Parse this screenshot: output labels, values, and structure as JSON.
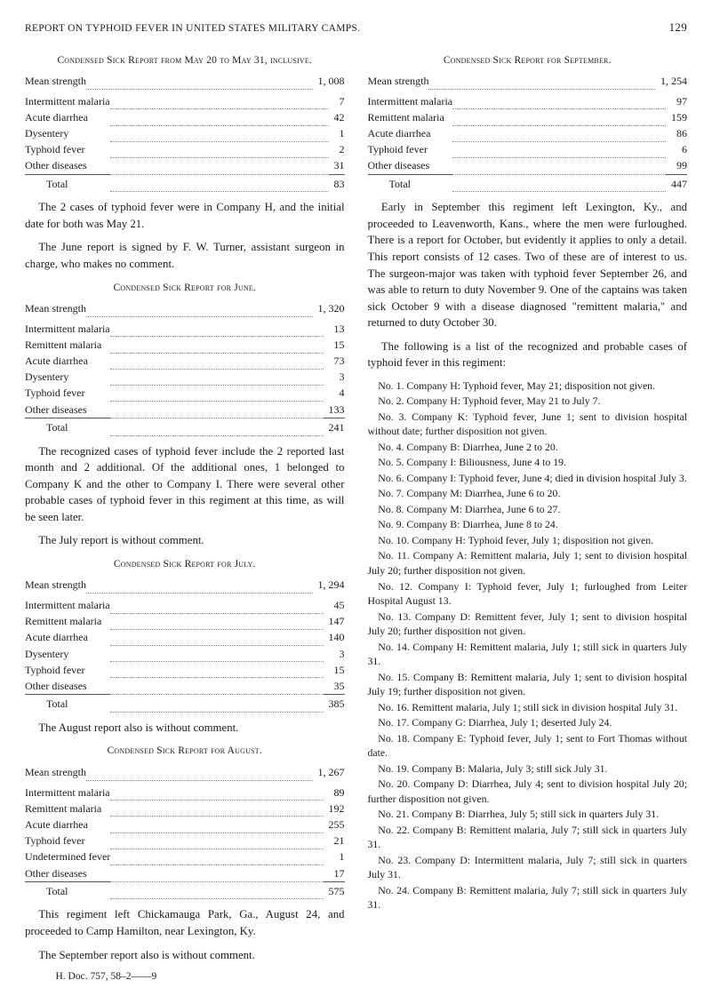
{
  "header": {
    "title": "REPORT ON TYPHOID FEVER IN UNITED STATES MILITARY CAMPS.",
    "page": "129"
  },
  "left": {
    "may": {
      "heading": "Condensed Sick Report from May 20 to May 31, inclusive.",
      "mean_label": "Mean strength",
      "mean_value": "1, 008",
      "rows": [
        {
          "label": "Intermittent malaria",
          "value": "7"
        },
        {
          "label": "Acute diarrhea",
          "value": "42"
        },
        {
          "label": "Dysentery",
          "value": "1"
        },
        {
          "label": "Typhoid fever",
          "value": "2"
        },
        {
          "label": "Other diseases",
          "value": "31"
        }
      ],
      "total_label": "Total",
      "total_value": "83"
    },
    "para_may_after": "The 2 cases of typhoid fever were in Company H, and the initial date for both was May 21.",
    "para_may_after2": "The June report is signed by F. W. Turner, assistant surgeon in charge, who makes no comment.",
    "june": {
      "heading": "Condensed Sick Report for June.",
      "mean_label": "Mean strength",
      "mean_value": "1, 320",
      "rows": [
        {
          "label": "Intermittent malaria",
          "value": "13"
        },
        {
          "label": "Remittent malaria",
          "value": "15"
        },
        {
          "label": "Acute diarrhea",
          "value": "73"
        },
        {
          "label": "Dysentery",
          "value": "3"
        },
        {
          "label": "Typhoid fever",
          "value": "4"
        },
        {
          "label": "Other diseases",
          "value": "133"
        }
      ],
      "total_label": "Total",
      "total_value": "241"
    },
    "para_june_after": "The recognized cases of typhoid fever include the 2 reported last month and 2 additional. Of the additional ones, 1 belonged to Company K and the other to Company I. There were several other probable cases of typhoid fever in this regiment at this time, as will be seen later.",
    "para_june_after2": "The July report is without comment.",
    "july": {
      "heading": "Condensed Sick Report for July.",
      "mean_label": "Mean strength",
      "mean_value": "1, 294",
      "rows": [
        {
          "label": "Intermittent malaria",
          "value": "45"
        },
        {
          "label": "Remittent malaria",
          "value": "147"
        },
        {
          "label": "Acute diarrhea",
          "value": "140"
        },
        {
          "label": "Dysentery",
          "value": "3"
        },
        {
          "label": "Typhoid fever",
          "value": "15"
        },
        {
          "label": "Other diseases",
          "value": "35"
        }
      ],
      "total_label": "Total",
      "total_value": "385"
    },
    "para_july_after": "The August report also is without comment.",
    "august": {
      "heading": "Condensed Sick Report for August.",
      "mean_label": "Mean strength",
      "mean_value": "1, 267",
      "rows": [
        {
          "label": "Intermittent malaria",
          "value": "89"
        },
        {
          "label": "Remittent malaria",
          "value": "192"
        },
        {
          "label": "Acute diarrhea",
          "value": "255"
        },
        {
          "label": "Typhoid fever",
          "value": "21"
        },
        {
          "label": "Undetermined fever",
          "value": "1"
        },
        {
          "label": "Other diseases",
          "value": "17"
        }
      ],
      "total_label": "Total",
      "total_value": "575"
    },
    "para_aug_after": "This regiment left Chickamauga Park, Ga., August 24, and proceeded to Camp Hamilton, near Lexington, Ky.",
    "para_aug_after2": "The September report also is without comment.",
    "footer": "H. Doc. 757, 58–2——9"
  },
  "right": {
    "sept": {
      "heading": "Condensed Sick Report for September.",
      "mean_label": "Mean strength",
      "mean_value": "1, 254",
      "rows": [
        {
          "label": "Intermittent malaria",
          "value": "97"
        },
        {
          "label": "Remittent malaria",
          "value": "159"
        },
        {
          "label": "Acute diarrhea",
          "value": "86"
        },
        {
          "label": "Typhoid fever",
          "value": "6"
        },
        {
          "label": "Other diseases",
          "value": "99"
        }
      ],
      "total_label": "Total",
      "total_value": "447"
    },
    "para_sept_after": "Early in September this regiment left Lexington, Ky., and proceeded to Leavenworth, Kans., where the men were furloughed. There is a report for October, but evidently it applies to only a detail. This report consists of 12 cases. Two of these are of interest to us. The surgeon-major was taken with typhoid fever September 26, and was able to return to duty November 9. One of the captains was taken sick October 9 with a disease diagnosed \"remittent malaria,\" and returned to duty October 30.",
    "para_list_intro": "The following is a list of the recognized and probable cases of typhoid fever in this regiment:",
    "cases": [
      "No. 1. Company H: Typhoid fever, May 21; disposition not given.",
      "No. 2. Company H: Typhoid fever, May 21 to July 7.",
      "No. 3. Company K: Typhoid fever, June 1; sent to division hospital without date; further disposition not given.",
      "No. 4. Company B: Diarrhea, June 2 to 20.",
      "No. 5. Company I: Biliousness, June 4 to 19.",
      "No. 6. Company I: Typhoid fever, June 4; died in division hospital July 3.",
      "No. 7. Company M: Diarrhea, June 6 to 20.",
      "No. 8. Company M: Diarrhea, June 6 to 27.",
      "No. 9. Company B: Diarrhea, June 8 to 24.",
      "No. 10. Company H: Typhoid fever, July 1; disposition not given.",
      "No. 11. Company A: Remittent malaria, July 1; sent to division hospital July 20; further disposition not given.",
      "No. 12. Company I: Typhoid fever, July 1; furloughed from Leiter Hospital August 13.",
      "No. 13. Company D: Remittent fever, July 1; sent to division hospital July 20; further disposition not given.",
      "No. 14. Company H: Remittent malaria, July 1; still sick in quarters July 31.",
      "No. 15. Company B: Remittent malaria, July 1; sent to division hospital July 19; further disposition not given.",
      "No. 16. Remittent malaria, July 1; still sick in division hospital July 31.",
      "No. 17. Company G: Diarrhea, July 1; deserted July 24.",
      "No. 18. Company E: Typhoid fever, July 1; sent to Fort Thomas without date.",
      "No. 19. Company B: Malaria, July 3; still sick July 31.",
      "No. 20. Company D: Diarrhea, July 4; sent to division hospital July 20; further disposition not given.",
      "No. 21. Company B: Diarrhea, July 5; still sick in quarters July 31.",
      "No. 22. Company B: Remittent malaria, July 7; still sick in quarters July 31.",
      "No. 23. Company D: Intermittent malaria, July 7; still sick in quarters July 31.",
      "No. 24. Company B: Remittent malaria, July 7; still sick in quarters July 31."
    ]
  }
}
